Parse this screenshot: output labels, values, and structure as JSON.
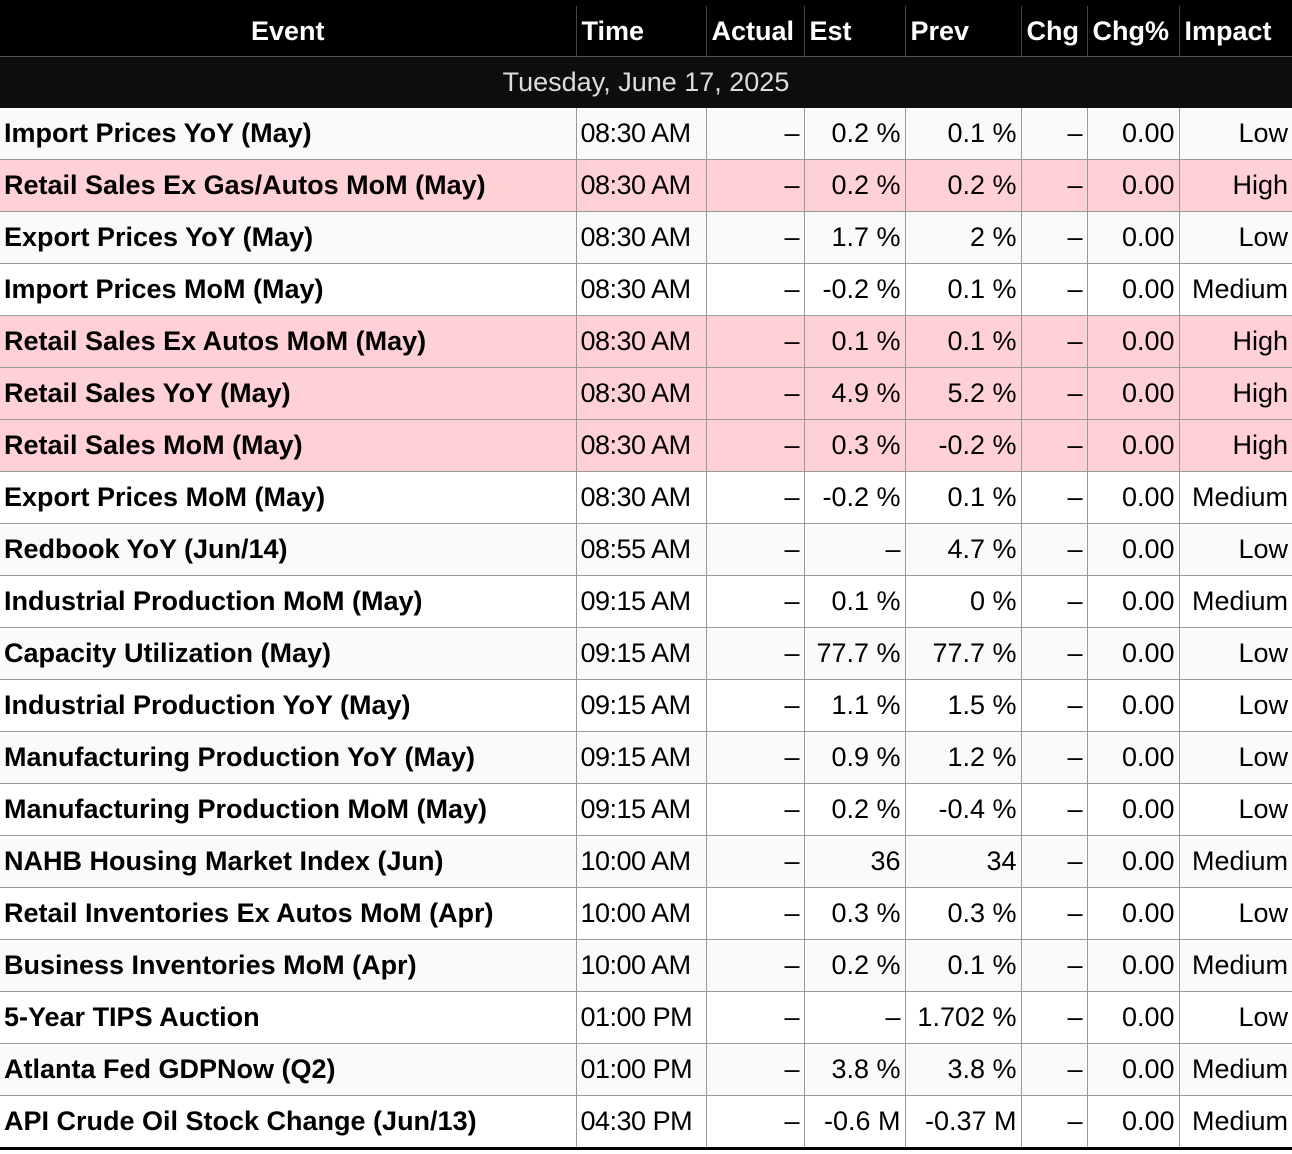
{
  "columns": [
    "Event",
    "Time",
    "Actual",
    "Est",
    "Prev",
    "Chg",
    "Chg%",
    "Impact"
  ],
  "date_label": "Tuesday, June 17, 2025",
  "rows": [
    {
      "event": "Import Prices YoY (May)",
      "time": "08:30 AM",
      "actual": "–",
      "est": "0.2 %",
      "prev": "0.1 %",
      "chg": "–",
      "chgp": "0.00",
      "impact": "Low"
    },
    {
      "event": "Retail Sales Ex Gas/Autos MoM (May)",
      "time": "08:30 AM",
      "actual": "–",
      "est": "0.2 %",
      "prev": "0.2 %",
      "chg": "–",
      "chgp": "0.00",
      "impact": "High"
    },
    {
      "event": "Export Prices YoY (May)",
      "time": "08:30 AM",
      "actual": "–",
      "est": "1.7 %",
      "prev": "2 %",
      "chg": "–",
      "chgp": "0.00",
      "impact": "Low"
    },
    {
      "event": "Import Prices MoM (May)",
      "time": "08:30 AM",
      "actual": "–",
      "est": "-0.2 %",
      "prev": "0.1 %",
      "chg": "–",
      "chgp": "0.00",
      "impact": "Medium"
    },
    {
      "event": "Retail Sales Ex Autos MoM (May)",
      "time": "08:30 AM",
      "actual": "–",
      "est": "0.1 %",
      "prev": "0.1 %",
      "chg": "–",
      "chgp": "0.00",
      "impact": "High"
    },
    {
      "event": "Retail Sales YoY (May)",
      "time": "08:30 AM",
      "actual": "–",
      "est": "4.9 %",
      "prev": "5.2 %",
      "chg": "–",
      "chgp": "0.00",
      "impact": "High"
    },
    {
      "event": "Retail Sales MoM (May)",
      "time": "08:30 AM",
      "actual": "–",
      "est": "0.3 %",
      "prev": "-0.2 %",
      "chg": "–",
      "chgp": "0.00",
      "impact": "High"
    },
    {
      "event": "Export Prices MoM (May)",
      "time": "08:30 AM",
      "actual": "–",
      "est": "-0.2 %",
      "prev": "0.1 %",
      "chg": "–",
      "chgp": "0.00",
      "impact": "Medium"
    },
    {
      "event": "Redbook YoY (Jun/14)",
      "time": "08:55 AM",
      "actual": "–",
      "est": "–",
      "prev": "4.7 %",
      "chg": "–",
      "chgp": "0.00",
      "impact": "Low"
    },
    {
      "event": "Industrial Production MoM (May)",
      "time": "09:15 AM",
      "actual": "–",
      "est": "0.1 %",
      "prev": "0 %",
      "chg": "–",
      "chgp": "0.00",
      "impact": "Medium"
    },
    {
      "event": "Capacity Utilization (May)",
      "time": "09:15 AM",
      "actual": "–",
      "est": "77.7 %",
      "prev": "77.7 %",
      "chg": "–",
      "chgp": "0.00",
      "impact": "Low"
    },
    {
      "event": "Industrial Production YoY (May)",
      "time": "09:15 AM",
      "actual": "–",
      "est": "1.1 %",
      "prev": "1.5 %",
      "chg": "–",
      "chgp": "0.00",
      "impact": "Low"
    },
    {
      "event": "Manufacturing Production YoY (May)",
      "time": "09:15 AM",
      "actual": "–",
      "est": "0.9 %",
      "prev": "1.2 %",
      "chg": "–",
      "chgp": "0.00",
      "impact": "Low"
    },
    {
      "event": "Manufacturing Production MoM (May)",
      "time": "09:15 AM",
      "actual": "–",
      "est": "0.2 %",
      "prev": "-0.4 %",
      "chg": "–",
      "chgp": "0.00",
      "impact": "Low"
    },
    {
      "event": "NAHB Housing Market Index (Jun)",
      "time": "10:00 AM",
      "actual": "–",
      "est": "36",
      "prev": "34",
      "chg": "–",
      "chgp": "0.00",
      "impact": "Medium"
    },
    {
      "event": "Retail Inventories Ex Autos MoM (Apr)",
      "time": "10:00 AM",
      "actual": "–",
      "est": "0.3 %",
      "prev": "0.3 %",
      "chg": "–",
      "chgp": "0.00",
      "impact": "Low"
    },
    {
      "event": "Business Inventories MoM (Apr)",
      "time": "10:00 AM",
      "actual": "–",
      "est": "0.2 %",
      "prev": "0.1 %",
      "chg": "–",
      "chgp": "0.00",
      "impact": "Medium"
    },
    {
      "event": "5-Year TIPS Auction",
      "time": "01:00 PM",
      "actual": "–",
      "est": "–",
      "prev": "1.702 %",
      "chg": "–",
      "chgp": "0.00",
      "impact": "Low"
    },
    {
      "event": "Atlanta Fed GDPNow (Q2)",
      "time": "01:00 PM",
      "actual": "–",
      "est": "3.8 %",
      "prev": "3.8 %",
      "chg": "–",
      "chgp": "0.00",
      "impact": "Medium"
    },
    {
      "event": "API Crude Oil Stock Change (Jun/13)",
      "time": "04:30 PM",
      "actual": "–",
      "est": "-0.6 M",
      "prev": "-0.37 M",
      "chg": "–",
      "chgp": "0.00",
      "impact": "Medium"
    }
  ],
  "colors": {
    "header_bg": "#000000",
    "header_text": "#ffffff",
    "date_bg": "#0d0d0d",
    "date_text": "#dddddd",
    "high_impact_row": "#ffd1d6",
    "row_alt": "#fafafa",
    "row": "#ffffff"
  }
}
